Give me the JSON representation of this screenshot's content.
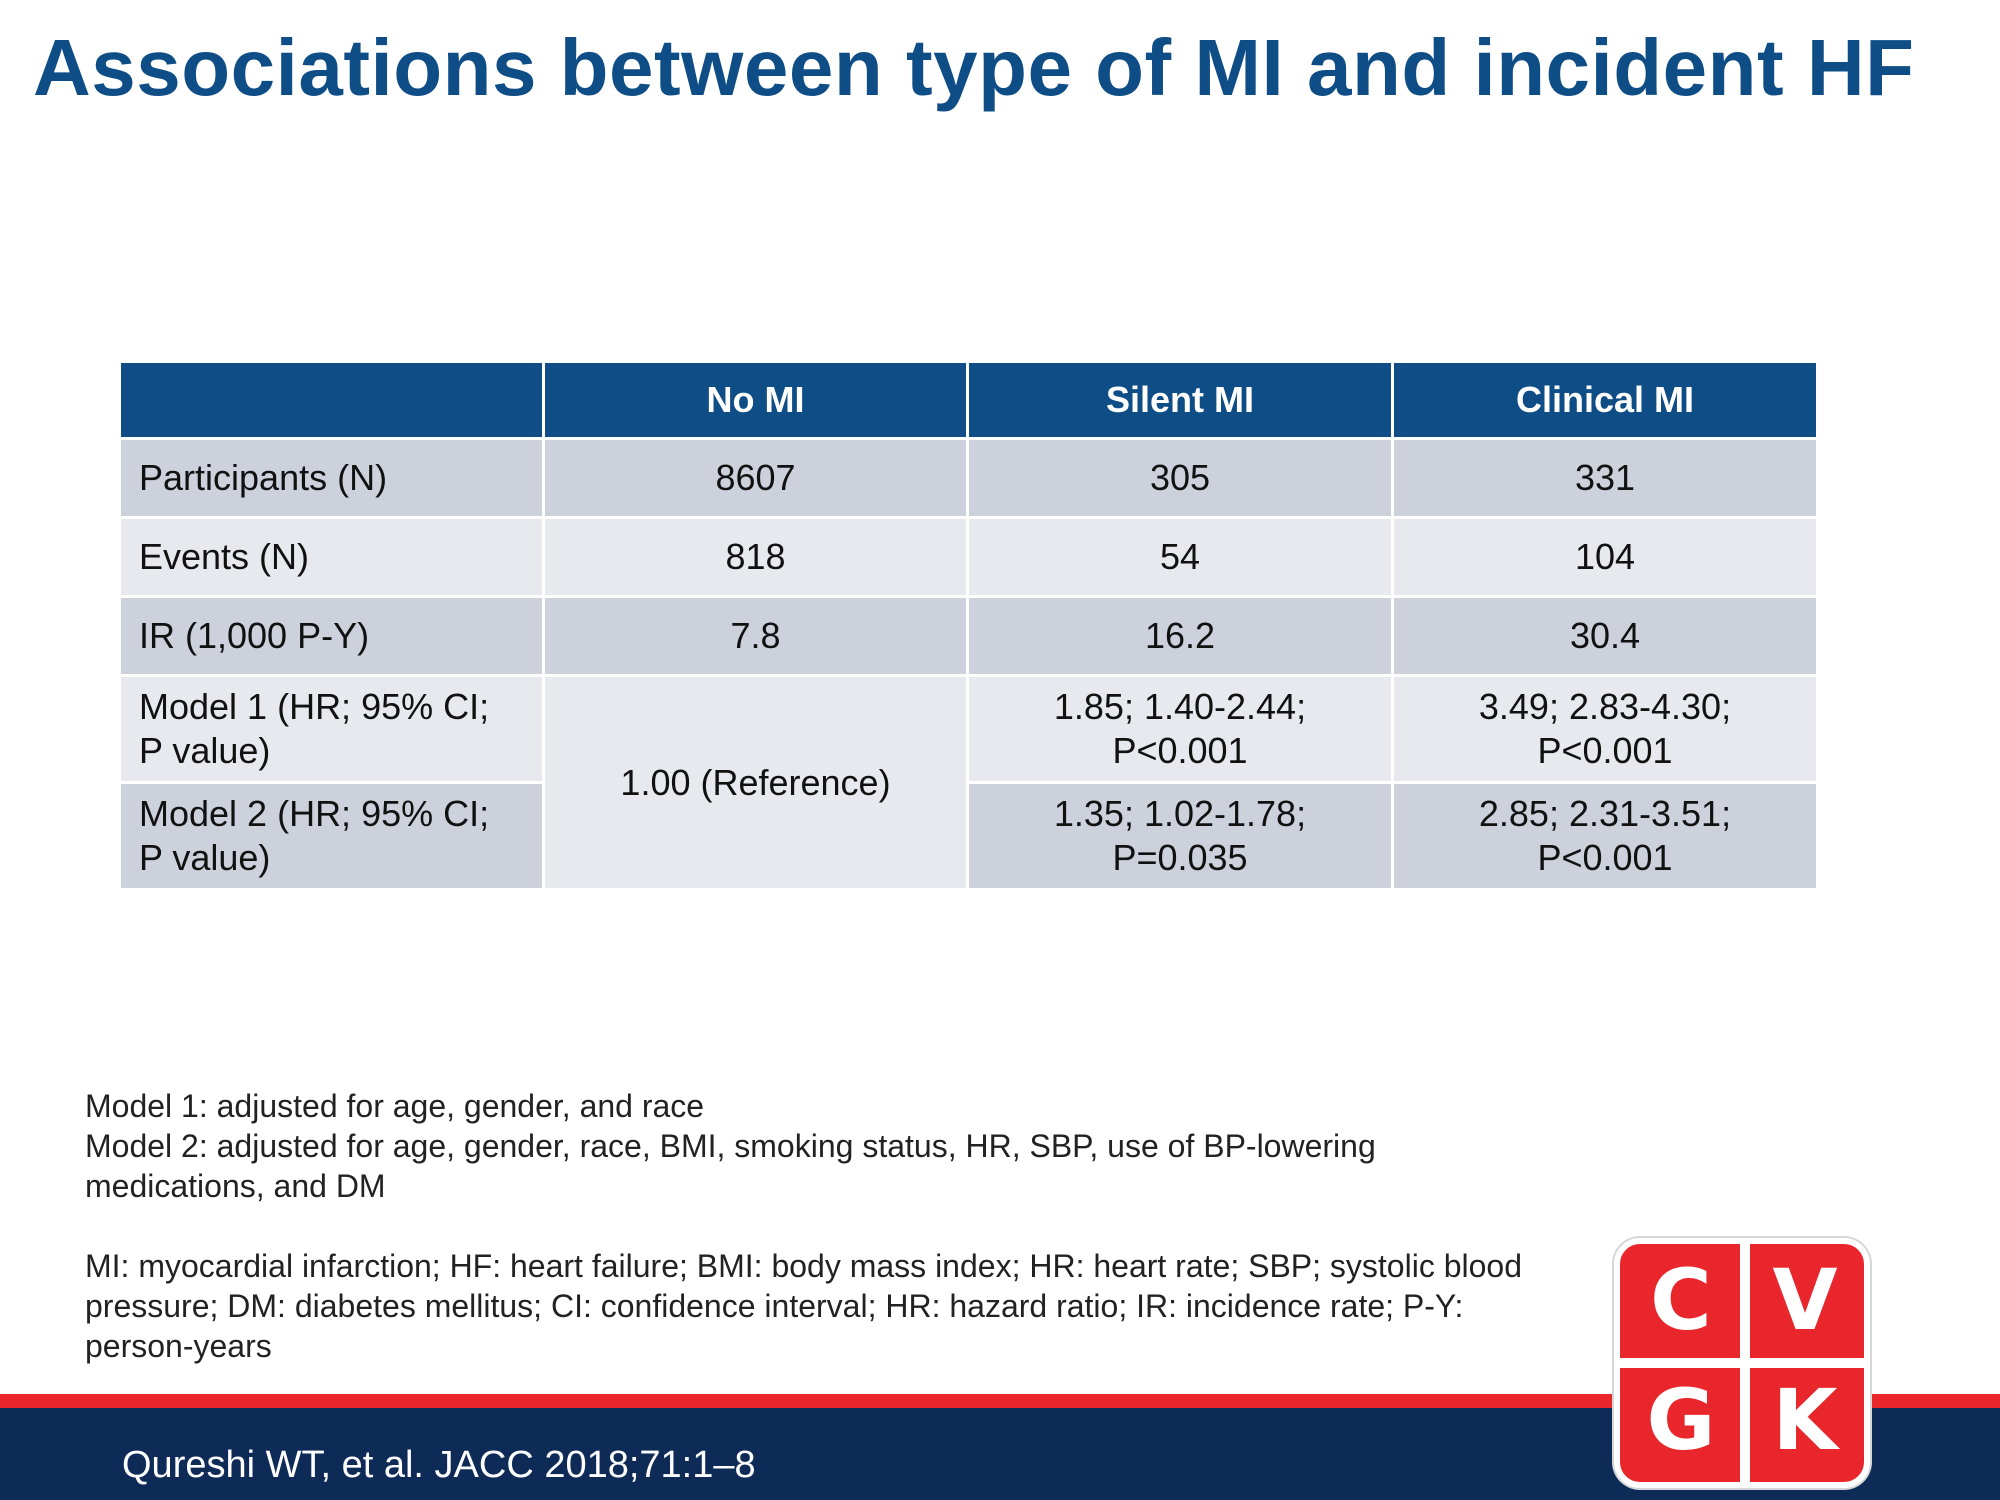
{
  "title": "Associations between type of MI and incident HF",
  "table": {
    "headers": [
      "",
      "No MI",
      "Silent MI",
      "Clinical MI"
    ],
    "rows": [
      {
        "label": "Participants (N)",
        "no_mi": "8607",
        "silent_mi": "305",
        "clinical_mi": "331"
      },
      {
        "label": "Events (N)",
        "no_mi": "818",
        "silent_mi": "54",
        "clinical_mi": "104"
      },
      {
        "label": "IR (1,000 P-Y)",
        "no_mi": "7.8",
        "silent_mi": "16.2",
        "clinical_mi": "30.4"
      },
      {
        "label_line1": "Model 1 (HR; 95% CI;",
        "label_line2": "P value)",
        "silent_line1": "1.85; 1.40-2.44;",
        "silent_line2": "P<0.001",
        "clinical_line1": "3.49; 2.83-4.30;",
        "clinical_line2": "P<0.001"
      },
      {
        "label_line1": "Model 2 (HR; 95% CI;",
        "label_line2": "P value)",
        "silent_line1": "1.35; 1.02-1.78;",
        "silent_line2": "P=0.035",
        "clinical_line1": "2.85; 2.31-3.51;",
        "clinical_line2": "P<0.001"
      }
    ],
    "reference": "1.00 (Reference)"
  },
  "notes": {
    "model1": "Model 1: adjusted for age, gender, and race",
    "model2_line1": "Model 2: adjusted for age, gender, race, BMI, smoking status, HR, SBP, use of BP-lowering",
    "model2_line2": "medications, and DM",
    "abbrev_line1": "MI: myocardial infarction; HF: heart failure; BMI: body mass index; HR: heart rate; SBP; systolic blood",
    "abbrev_line2": "pressure; DM: diabetes mellitus; CI: confidence interval; HR: hazard ratio; IR: incidence rate; P-Y:",
    "abbrev_line3": "person-years"
  },
  "citation": "Qureshi WT, et al. JACC 2018;71:1–8",
  "logo": {
    "letters": [
      "C",
      "V",
      "G",
      "K"
    ]
  },
  "colors": {
    "title": "#0f4d86",
    "header_bg": "#0f4d86",
    "row_dark": "#cdd1dc",
    "row_light": "#e8e9ee",
    "footer": "#0e2b58",
    "accent_red": "#e8262b"
  }
}
